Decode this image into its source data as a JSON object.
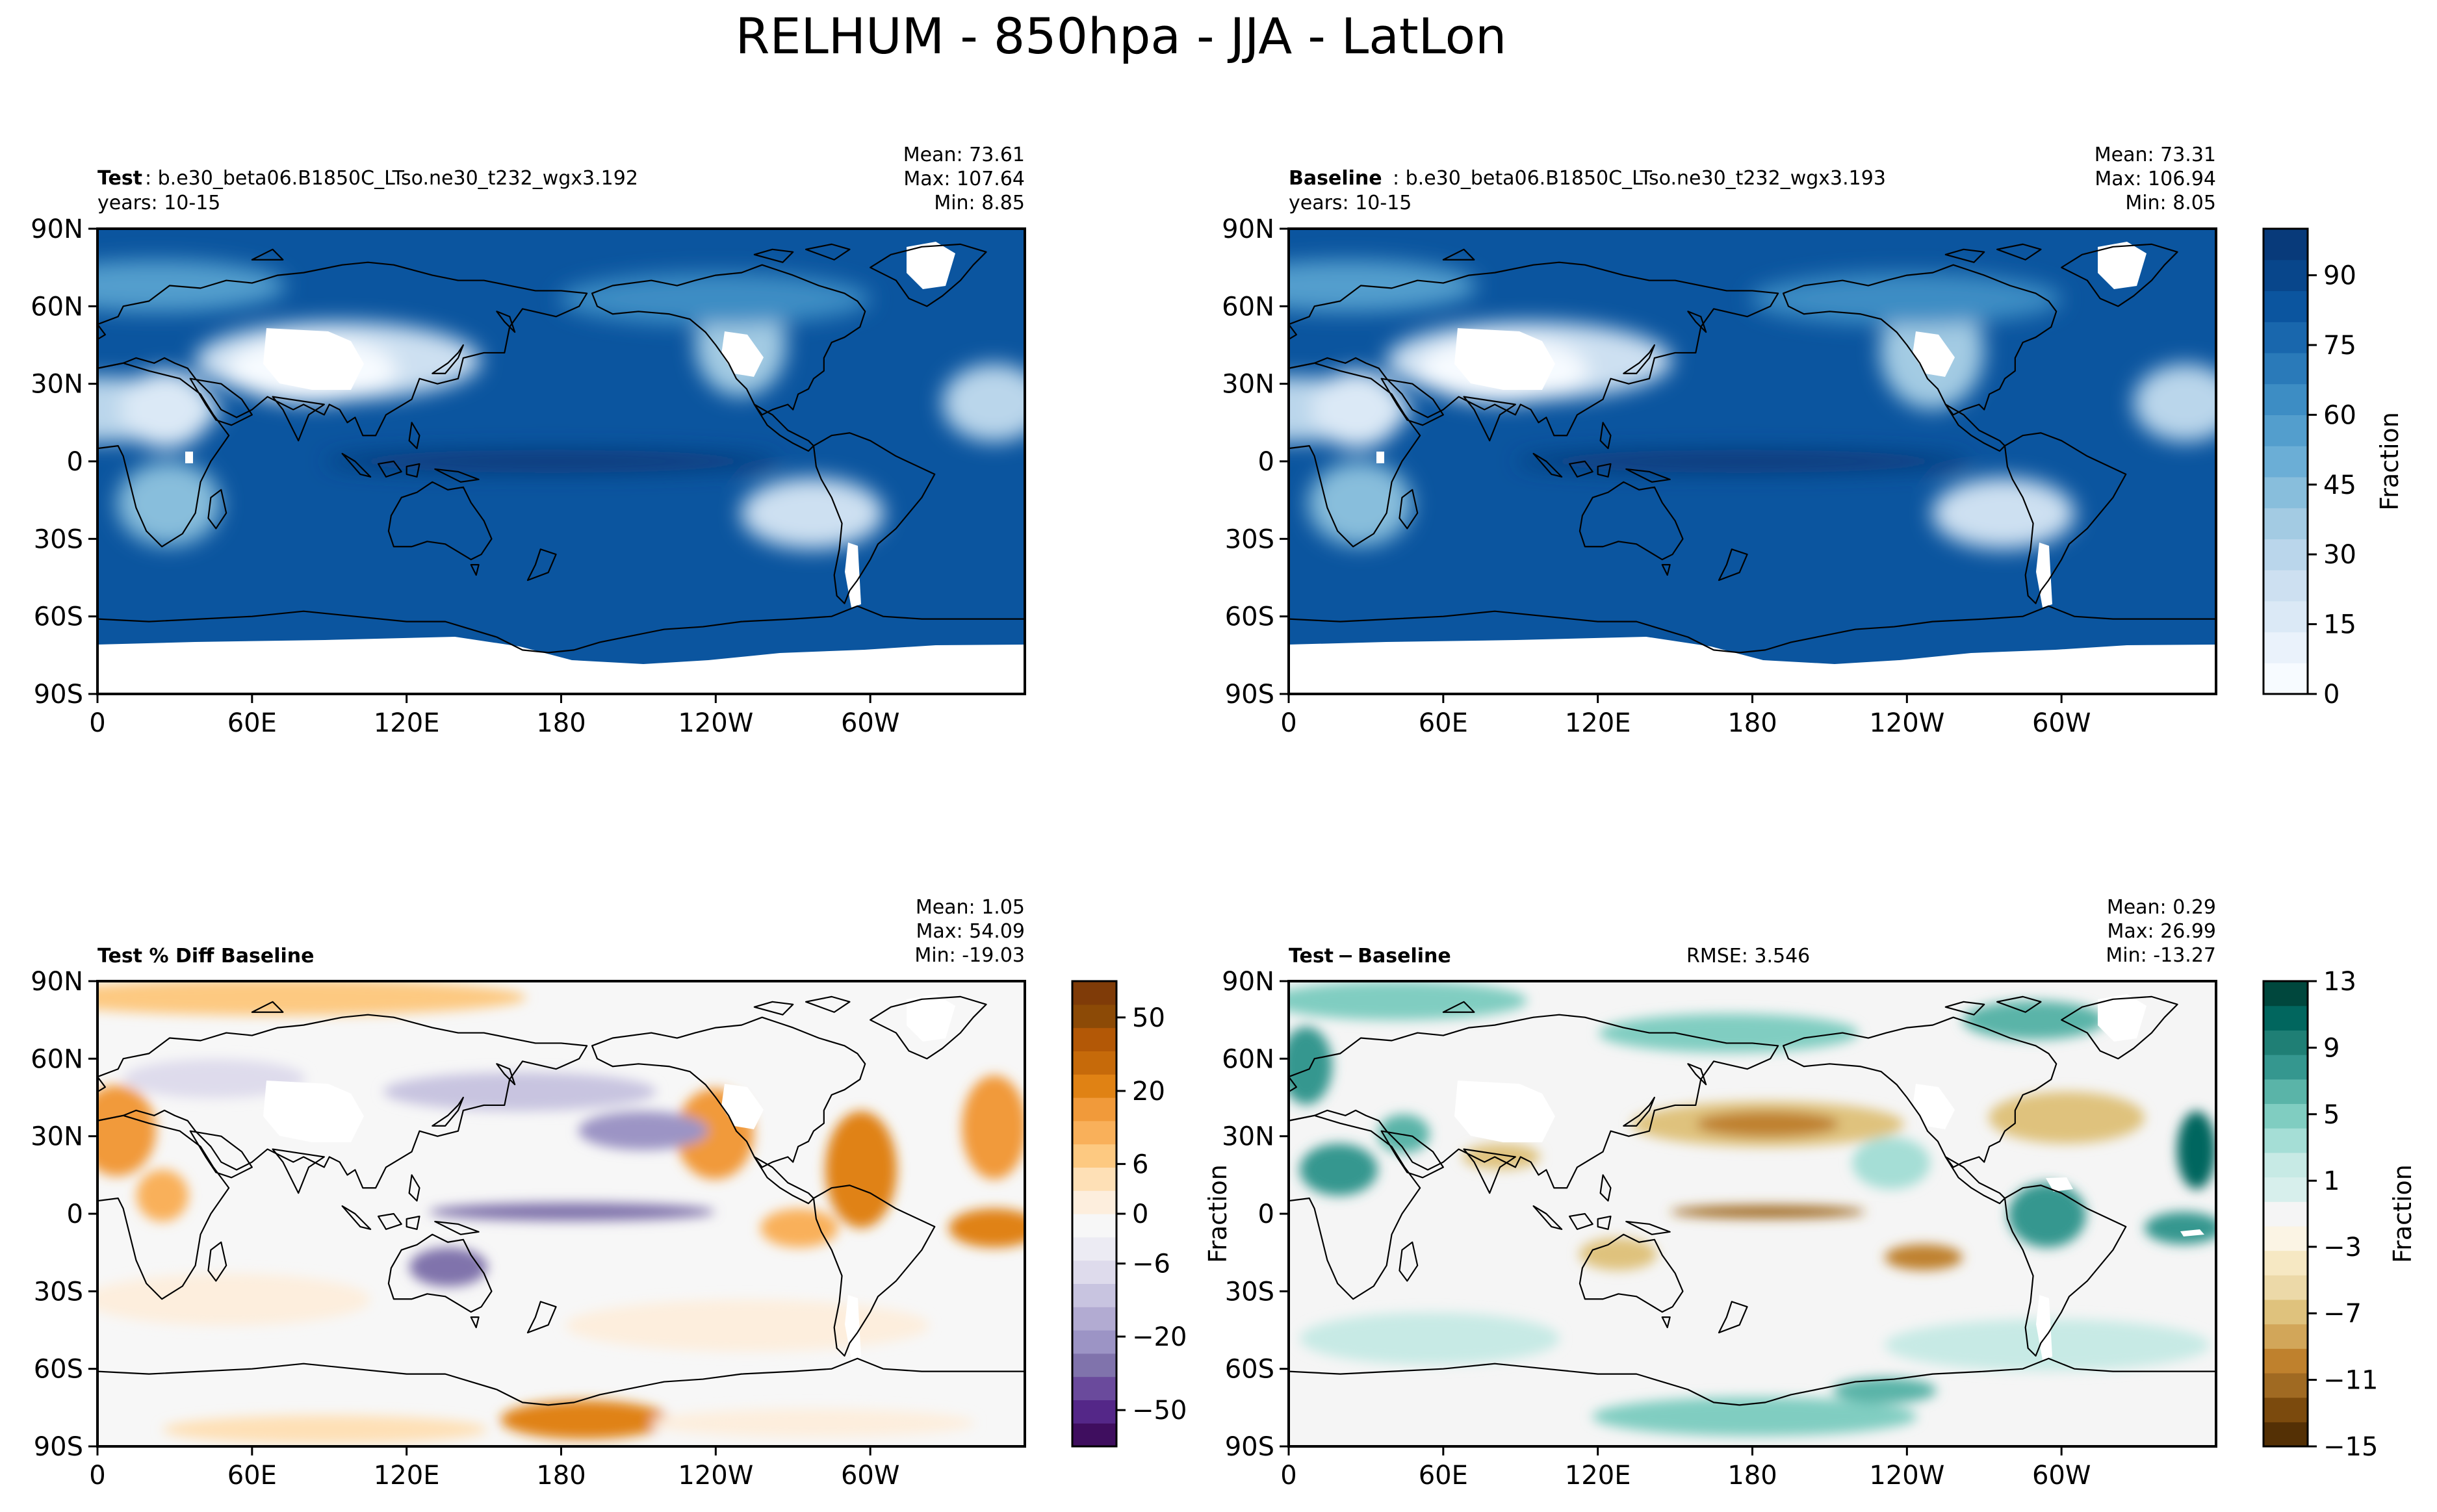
{
  "figure": {
    "title": "RELHUM - 850hpa - JJA - LatLon"
  },
  "colors": {
    "blues": [
      "#f7fbff",
      "#eaf2fb",
      "#dbe9f6",
      "#cde0f1",
      "#bad6eb",
      "#a3cbe3",
      "#88bedc",
      "#6baed6",
      "#539ecd",
      "#3d8dc4",
      "#2a7ab9",
      "#1967ad",
      "#0b559f",
      "#08468b",
      "#083a7a"
    ],
    "puor": [
      "#3f0e5f",
      "#542788",
      "#6a4a9c",
      "#8073ac",
      "#9c94c5",
      "#b2abd2",
      "#c8c4e0",
      "#dedbec",
      "#ecebf3",
      "#f7f7f7",
      "#fdeedd",
      "#fee0b6",
      "#fdc981",
      "#f9b05a",
      "#f19a3a",
      "#e08214",
      "#c66a0a",
      "#b35806",
      "#8c4a06",
      "#7f3b08"
    ],
    "brbg": [
      "#543005",
      "#7b4a0d",
      "#a06a22",
      "#bf812d",
      "#d2a659",
      "#dfc27d",
      "#ecd9a8",
      "#f6e8c3",
      "#fbf4e4",
      "#f5f5f5",
      "#d7efec",
      "#c7eae5",
      "#a5ded6",
      "#80cdc1",
      "#5ab4a8",
      "#35978f",
      "#1f7f75",
      "#01665e",
      "#00473d"
    ]
  },
  "panels": [
    {
      "id": "test",
      "label_bold": "Test",
      "label_text": ": b.e30_beta06.B1850C_LTso.ne30_t232_wgx3.192",
      "years": "years: 10-15",
      "stats": {
        "mean": "Mean: 73.61",
        "max": "Max: 107.64",
        "min": "Min:  8.85"
      }
    },
    {
      "id": "baseline",
      "label_bold": "Baseline",
      "label_text": ": b.e30_beta06.B1850C_LTso.ne30_t232_wgx3.193",
      "years": "years: 10-15",
      "stats": {
        "mean": "Mean: 73.31",
        "max": "Max: 106.94",
        "min": "Min:  8.05"
      }
    },
    {
      "id": "pctdiff",
      "label_bold": "Test % Diff Baseline",
      "stats": {
        "mean": "Mean:  1.05",
        "max": "Max: 54.09",
        "min": "Min: -19.03"
      }
    },
    {
      "id": "diff",
      "label_bold": "Test − Baseline",
      "rmse": "RMSE: 3.546",
      "stats": {
        "mean": "Mean:  0.29",
        "max": "Max: 26.99",
        "min": "Min: -13.27"
      }
    }
  ],
  "chart_data": [
    {
      "type": "heatmap",
      "title": "Test",
      "variable": "RELHUM",
      "units": "Fraction",
      "x_ticks": [
        "0",
        "60E",
        "120E",
        "180",
        "120W",
        "60W"
      ],
      "y_ticks": [
        "90N",
        "60N",
        "30N",
        "0",
        "30S",
        "60S",
        "90S"
      ],
      "xlim": [
        0,
        360
      ],
      "ylim": [
        -90,
        90
      ],
      "value_range": [
        0,
        100
      ],
      "stats": {
        "mean": 73.61,
        "max": 107.64,
        "min": 8.85
      }
    },
    {
      "type": "heatmap",
      "title": "Baseline",
      "variable": "RELHUM",
      "units": "Fraction",
      "x_ticks": [
        "0",
        "60E",
        "120E",
        "180",
        "120W",
        "60W"
      ],
      "y_ticks": [
        "90N",
        "60N",
        "30N",
        "0",
        "30S",
        "60S",
        "90S"
      ],
      "xlim": [
        0,
        360
      ],
      "ylim": [
        -90,
        90
      ],
      "value_range": [
        0,
        100
      ],
      "stats": {
        "mean": 73.31,
        "max": 106.94,
        "min": 8.05
      }
    },
    {
      "type": "heatmap",
      "title": "Test % Diff Baseline",
      "x_ticks": [
        "0",
        "60E",
        "120E",
        "180",
        "120W",
        "60W"
      ],
      "y_ticks": [
        "90N",
        "60N",
        "30N",
        "0",
        "30S",
        "60S",
        "90S"
      ],
      "xlim": [
        0,
        360
      ],
      "ylim": [
        -90,
        90
      ],
      "stats": {
        "mean": 1.05,
        "max": 54.09,
        "min": -19.03
      }
    },
    {
      "type": "heatmap",
      "title": "Test - Baseline",
      "units": "Fraction",
      "rmse": 3.546,
      "x_ticks": [
        "0",
        "60E",
        "120E",
        "180",
        "120W",
        "60W"
      ],
      "y_ticks": [
        "90N",
        "60N",
        "30N",
        "0",
        "30S",
        "60S",
        "90S"
      ],
      "xlim": [
        0,
        360
      ],
      "ylim": [
        -90,
        90
      ],
      "stats": {
        "mean": 0.29,
        "max": 26.99,
        "min": -13.27
      }
    }
  ],
  "colorbars": [
    {
      "id": "cb-top",
      "label": "Fraction",
      "ticks": [
        "0",
        "15",
        "30",
        "45",
        "60",
        "75",
        "90"
      ]
    },
    {
      "id": "cb-pct",
      "ticks": [
        "−50",
        "−20",
        "−6",
        "0",
        "6",
        "20",
        "50"
      ]
    },
    {
      "id": "cb-diff",
      "label": "Fraction",
      "ticks": [
        "−15",
        "−11",
        "−7",
        "−3",
        "1",
        "5",
        "9",
        "13"
      ]
    }
  ],
  "extra_labels": {
    "diff_ylabel": "Fraction"
  }
}
